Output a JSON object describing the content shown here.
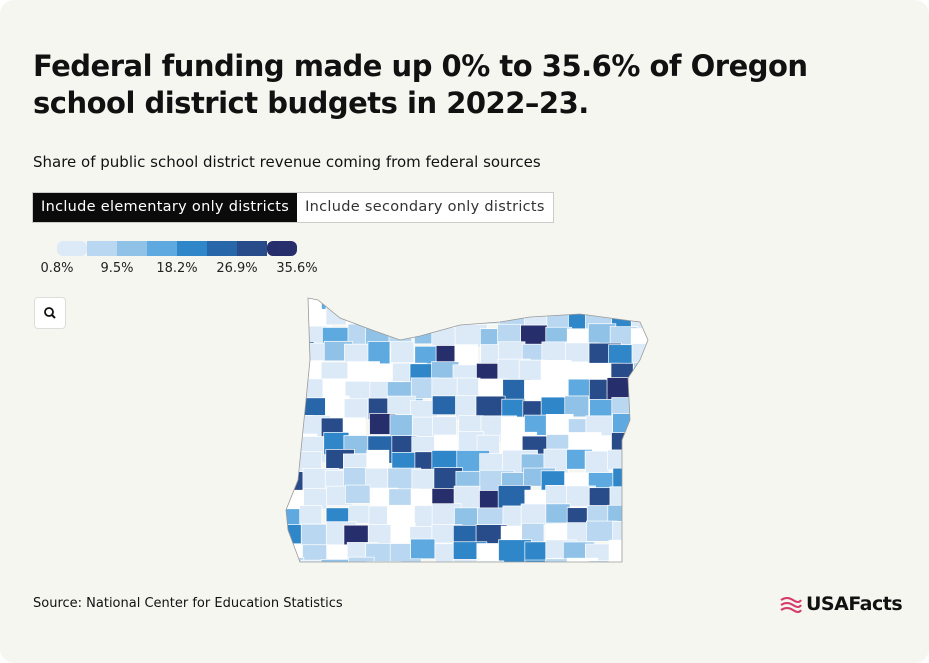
{
  "header": {
    "title": "Federal funding made up 0% to 35.6% of Oregon school district budgets in 2022–23.",
    "subtitle": "Share of public school district revenue coming from federal sources"
  },
  "tabs": [
    {
      "label": "Include elementary only districts",
      "active": true
    },
    {
      "label": "Include secondary only districts",
      "active": false
    }
  ],
  "legend": {
    "colors": [
      "#dceaf8",
      "#b9d7f0",
      "#90c2e8",
      "#5eaae0",
      "#2f86c8",
      "#2766a8",
      "#284c8a",
      "#262e6c"
    ],
    "labels": [
      "0.8%",
      "9.5%",
      "18.2%",
      "26.9%",
      "35.6%"
    ]
  },
  "footer": {
    "source": "Source: National Center for Education Statistics",
    "logo": "USAFacts"
  }
}
